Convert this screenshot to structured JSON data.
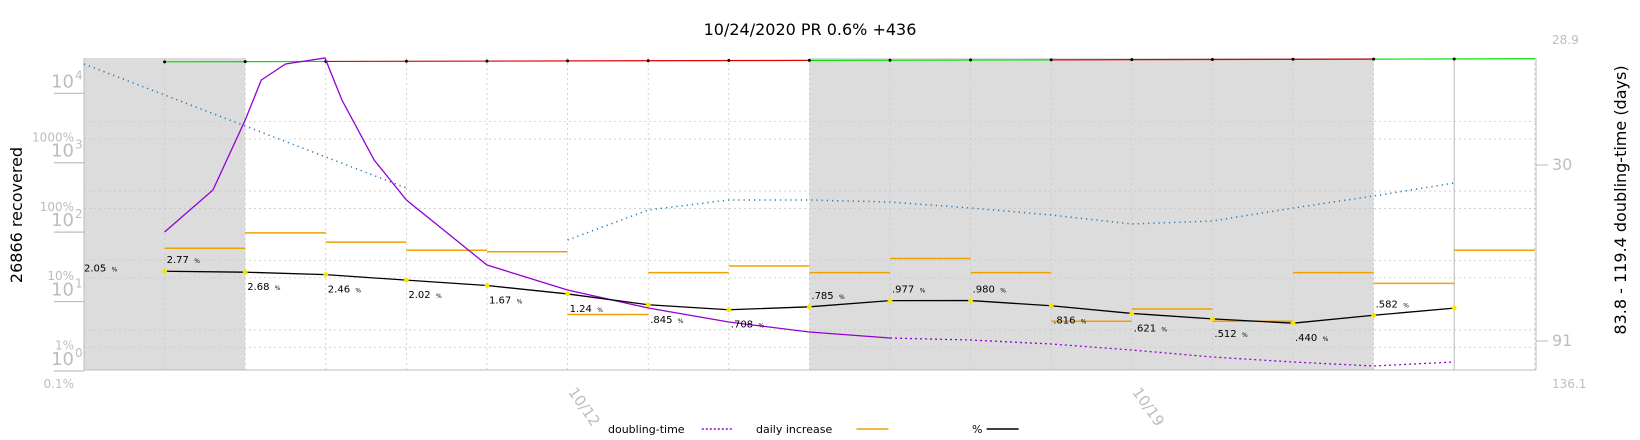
{
  "chart_data": {
    "type": "line",
    "title": "10/24/2020 PR 0.6% +436",
    "ylabel_left": "26866 recovered",
    "ylabel_right": "83.8 - 119.4 doubling-time (days)",
    "x_dates": [
      "10/6",
      "10/7",
      "10/8",
      "10/9",
      "10/10",
      "10/11",
      "10/12",
      "10/13",
      "10/14",
      "10/15",
      "10/16",
      "10/17",
      "10/18",
      "10/19",
      "10/20",
      "10/21",
      "10/22",
      "10/23",
      "10/24"
    ],
    "x_tick_labels": [
      {
        "date": "10/12",
        "label": "10/12"
      },
      {
        "date": "10/19",
        "label": "10/19"
      }
    ],
    "y_log_ticks": [
      {
        "value": 1,
        "base": "10",
        "exp": "0"
      },
      {
        "value": 10,
        "base": "10",
        "exp": "1"
      },
      {
        "value": 100,
        "base": "10",
        "exp": "2"
      },
      {
        "value": 1000,
        "base": "10",
        "exp": "3"
      },
      {
        "value": 10000,
        "base": "10",
        "exp": "4"
      }
    ],
    "y_pct_ticks": [
      {
        "label": "0.1%"
      },
      {
        "label": "1%"
      },
      {
        "label": "10%"
      },
      {
        "label": "100%"
      },
      {
        "label": "1000%"
      }
    ],
    "right_ticks": [
      {
        "label": "28.9"
      },
      {
        "label": "30"
      },
      {
        "label": "91"
      },
      {
        "label": "136.1"
      }
    ],
    "shaded_ranges": [
      [
        "10/6",
        "10/8"
      ],
      [
        "10/15",
        "10/22"
      ]
    ],
    "percent_series": {
      "name": "%",
      "values": [
        2.05,
        2.77,
        2.68,
        2.46,
        2.02,
        1.67,
        1.24,
        0.845,
        0.708,
        0.785,
        0.977,
        0.98,
        0.816,
        0.621,
        0.512,
        0.44,
        0.582,
        null,
        null
      ],
      "labels": [
        "2.05",
        "2.77",
        "2.68",
        "2.46",
        "2.02",
        "1.67",
        "1.24",
        ".845",
        ".708",
        ".785",
        ".977",
        ".980",
        ".816",
        ".621",
        ".512",
        ".440",
        ".582",
        "",
        ""
      ]
    },
    "daily_increase_levels": [
      null,
      45,
      75,
      55,
      42,
      40,
      5,
      20,
      25,
      20,
      32,
      20,
      4,
      6,
      4,
      20,
      14,
      42,
      null
    ],
    "cumulative_line_segments": [
      {
        "from": "10/7",
        "to": "10/9",
        "color": "#00e000"
      },
      {
        "from": "10/9",
        "to": "10/15",
        "color": "#e00000"
      },
      {
        "from": "10/15",
        "to": "10/18",
        "color": "#00e000"
      },
      {
        "from": "10/18",
        "to": "10/22",
        "color": "#e00000"
      },
      {
        "from": "10/22",
        "to": "10/24",
        "color": "#00e000"
      }
    ],
    "legend": [
      {
        "label": "doubling-time",
        "style": "dotted",
        "color": "#9400d3"
      },
      {
        "label": "daily increase",
        "style": "solid",
        "color": "#f0a000"
      },
      {
        "label": "%",
        "style": "solid",
        "color": "#000000"
      }
    ],
    "colors": {
      "percent_line": "#000000",
      "daily_increase": "#f0a000",
      "doubling_time": "#9400d3",
      "blue_dots": "#1f77b4",
      "shade": "#dcdcdc",
      "grid": "#c8c8c8",
      "marker": "#f5e600"
    },
    "grid": true,
    "legend_position": "bottom-center"
  }
}
